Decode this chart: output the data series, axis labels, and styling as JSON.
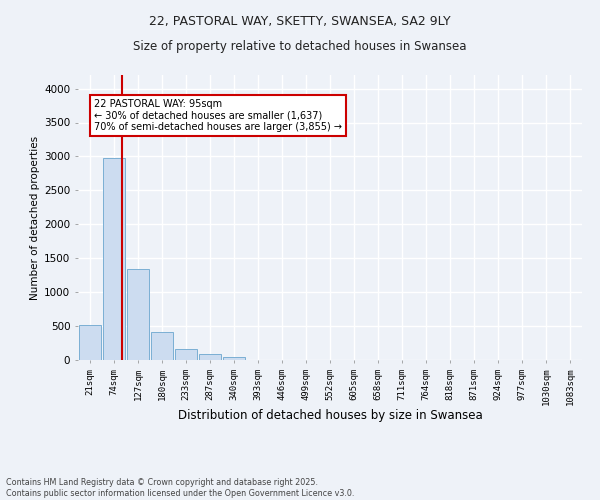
{
  "title_line1": "22, PASTORAL WAY, SKETTY, SWANSEA, SA2 9LY",
  "title_line2": "Size of property relative to detached houses in Swansea",
  "xlabel": "Distribution of detached houses by size in Swansea",
  "ylabel": "Number of detached properties",
  "bar_color": "#ccdcf0",
  "bar_edge_color": "#7aafd4",
  "categories": [
    "21sqm",
    "74sqm",
    "127sqm",
    "180sqm",
    "233sqm",
    "287sqm",
    "340sqm",
    "393sqm",
    "446sqm",
    "499sqm",
    "552sqm",
    "605sqm",
    "658sqm",
    "711sqm",
    "764sqm",
    "818sqm",
    "871sqm",
    "924sqm",
    "977sqm",
    "1030sqm",
    "1083sqm"
  ],
  "values": [
    510,
    2970,
    1340,
    420,
    165,
    90,
    50,
    0,
    0,
    0,
    0,
    0,
    0,
    0,
    0,
    0,
    0,
    0,
    0,
    0,
    0
  ],
  "ylim": [
    0,
    4200
  ],
  "yticks": [
    0,
    500,
    1000,
    1500,
    2000,
    2500,
    3000,
    3500,
    4000
  ],
  "vline_x": 1.35,
  "annotation_text": "22 PASTORAL WAY: 95sqm\n← 30% of detached houses are smaller (1,637)\n70% of semi-detached houses are larger (3,855) →",
  "annotation_box_color": "#ffffff",
  "annotation_box_edge": "#cc0000",
  "vline_color": "#cc0000",
  "footer_line1": "Contains HM Land Registry data © Crown copyright and database right 2025.",
  "footer_line2": "Contains public sector information licensed under the Open Government Licence v3.0.",
  "background_color": "#eef2f8",
  "grid_color": "#ffffff"
}
